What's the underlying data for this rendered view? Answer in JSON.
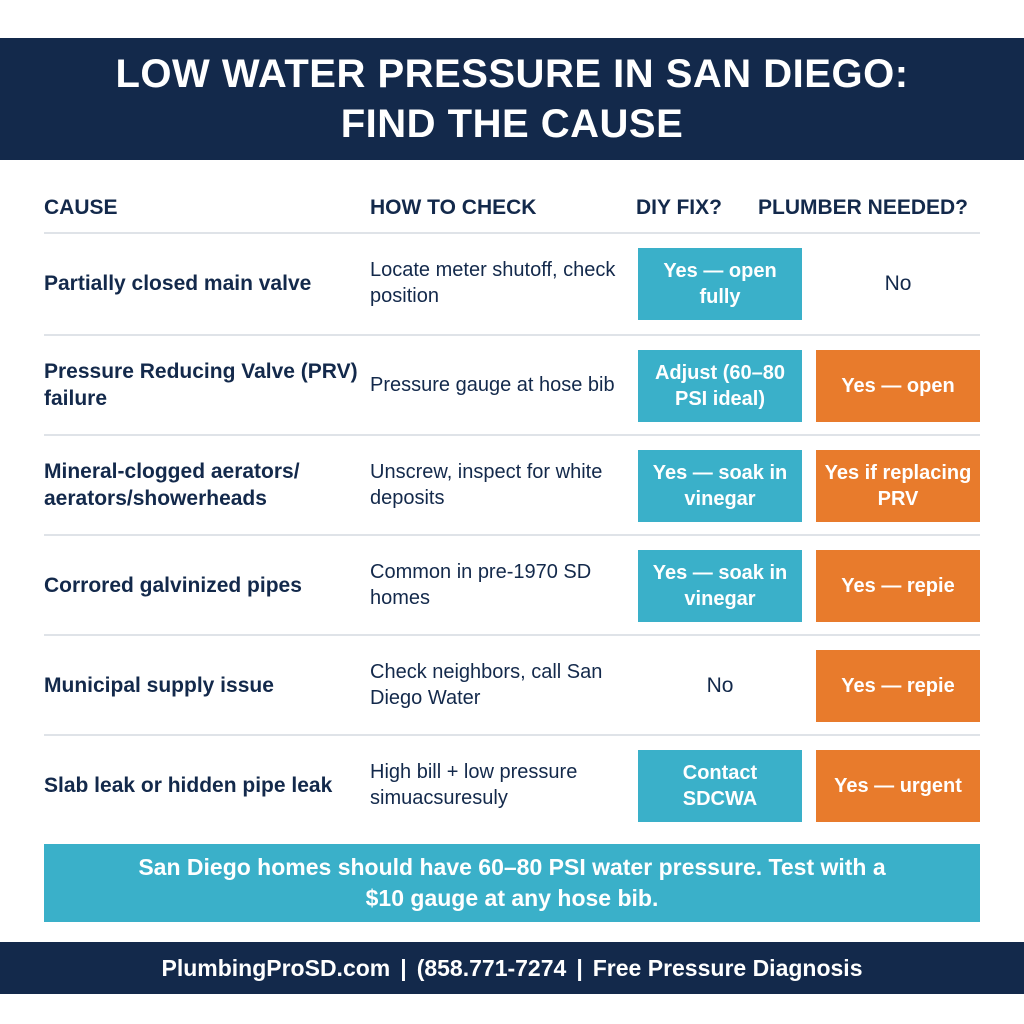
{
  "header": {
    "line1": "LOW WATER PRESSURE IN SAN DIEGO:",
    "line2": "FIND THE CAUSE"
  },
  "columns": {
    "cause": "CAUSE",
    "check": "HOW TO CHECK",
    "diy": "DIY FIX?",
    "plumber": "PLUMBER NEEDED?"
  },
  "rows": [
    {
      "cause": "Partially closed main valve",
      "check": "Locate meter shutoff, check position",
      "diy": "Yes — open fully",
      "plumber": "No"
    },
    {
      "cause": "Pressure Reducing Valve (PRV) failure",
      "check": "Pressure gauge at hose bib",
      "diy": "Adjust (60–80 PSI ideal)",
      "plumber": "Yes — open"
    },
    {
      "cause": "Mineral-clogged aerators/ aerators/showerheads",
      "check": "Unscrew, inspect for white deposits",
      "diy": "Yes — soak in vinegar",
      "plumber": "Yes if replacing PRV"
    },
    {
      "cause": "Corrored galvinized pipes",
      "check": "Common in pre-1970 SD homes",
      "diy": "Yes — soak in vinegar",
      "plumber": "Yes — repie"
    },
    {
      "cause": "Municipal supply issue",
      "check": "Check neighbors, call San Diego Water",
      "diy": "No",
      "plumber": "Yes — repie"
    },
    {
      "cause": "Slab leak or hidden pipe leak",
      "check": "High bill + low pressure simuacsuresuly",
      "diy": "Contact SDCWA",
      "plumber": "Yes — urgent"
    }
  ],
  "banner": {
    "text": "San Diego homes should have 60–80 PSI water pressure. Test with a $10 gauge at any hose bib."
  },
  "footer": {
    "website": "PlumbingProSD.com",
    "phone": "(858.771-7274",
    "offer": "Free Pressure Diagnosis",
    "separator": "|"
  },
  "colors": {
    "navy": "#13294b",
    "teal": "#3ab0c9",
    "orange": "#e87b2c",
    "divider": "#dfe3e8"
  }
}
